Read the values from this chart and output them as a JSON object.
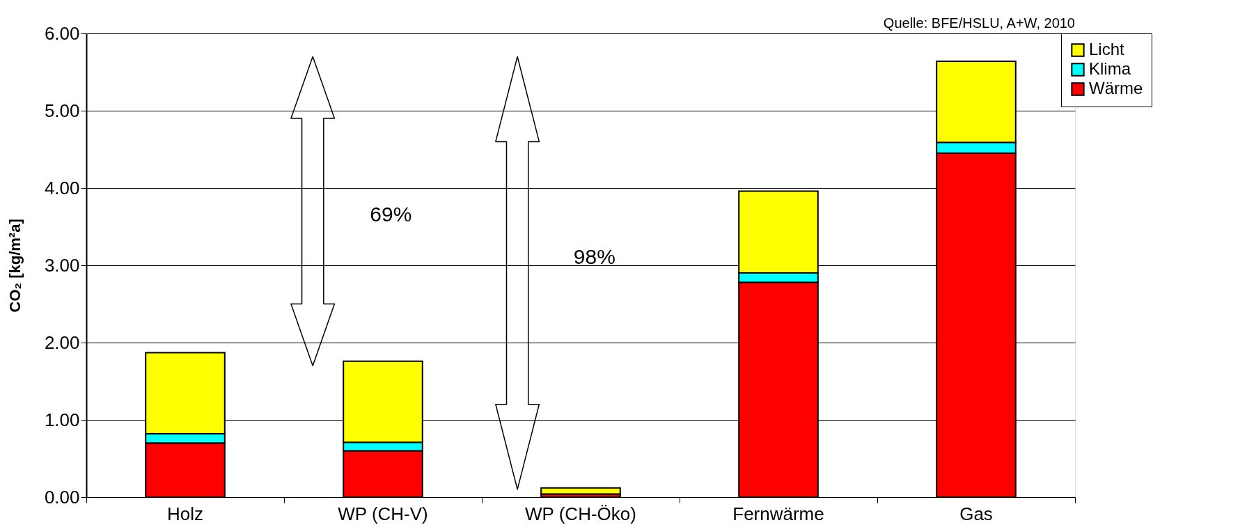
{
  "chart_data": {
    "type": "bar",
    "stacked": true,
    "ylabel": "CO₂ [kg/m²a]",
    "categories": [
      "Holz",
      "WP (CH-V)",
      "WP (CH-Öko)",
      "Fernwärme",
      "Gas"
    ],
    "series": [
      {
        "name": "Wärme",
        "color": "#ff0000",
        "values": [
          0.7,
          0.6,
          0.04,
          2.78,
          4.45
        ]
      },
      {
        "name": "Klima",
        "color": "#00ffff",
        "values": [
          0.12,
          0.11,
          0.0,
          0.12,
          0.14
        ]
      },
      {
        "name": "Licht",
        "color": "#ffff00",
        "values": [
          1.05,
          1.05,
          0.08,
          1.06,
          1.05
        ]
      }
    ],
    "ylim": [
      0,
      6
    ],
    "yticks": [
      {
        "value": 0,
        "label": "0.00"
      },
      {
        "value": 1,
        "label": "1.00"
      },
      {
        "value": 2,
        "label": "2.00"
      },
      {
        "value": 3,
        "label": "3.00"
      },
      {
        "value": 4,
        "label": "4.00"
      },
      {
        "value": 5,
        "label": "5.00"
      },
      {
        "value": 6,
        "label": "6.00"
      }
    ],
    "grid": "y",
    "legend": "right",
    "annotations": [
      "69%",
      "98%",
      "Quelle: BFE/HSLU, A+W, 2010"
    ]
  }
}
